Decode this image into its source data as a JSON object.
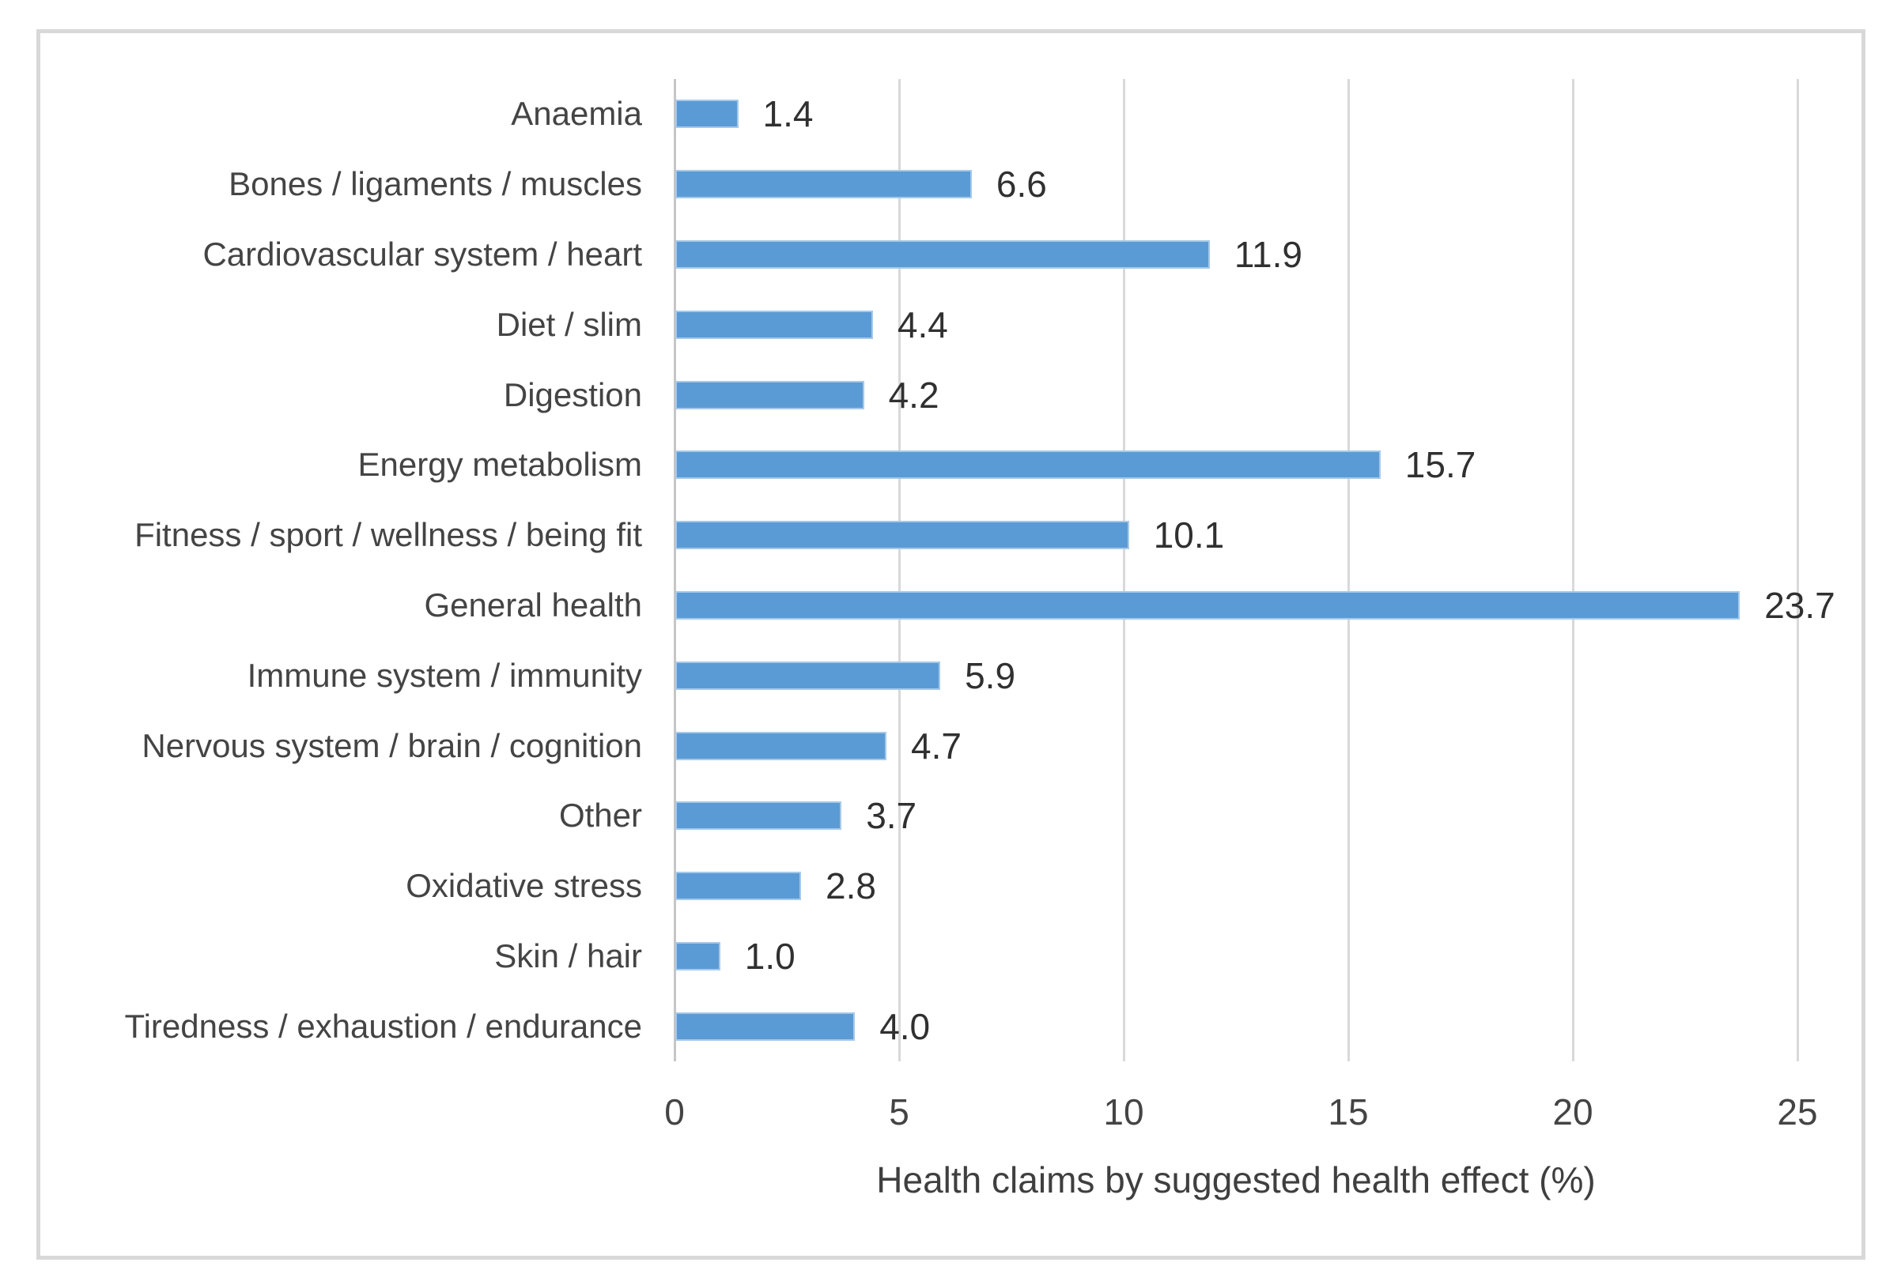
{
  "chart_data": {
    "type": "bar",
    "orientation": "horizontal",
    "title": "",
    "xlabel": "Health claims by suggested health effect (%)",
    "ylabel": "",
    "categories": [
      "Anaemia",
      "Bones / ligaments / muscles",
      "Cardiovascular system / heart",
      "Diet / slim",
      "Digestion",
      "Energy metabolism",
      "Fitness / sport / wellness / being fit",
      "General health",
      "Immune system / immunity",
      "Nervous system / brain / cognition",
      "Other",
      "Oxidative stress",
      "Skin / hair",
      "Tiredness / exhaustion / endurance"
    ],
    "values": [
      1.4,
      6.6,
      11.9,
      4.4,
      4.2,
      15.7,
      10.1,
      23.7,
      5.9,
      4.7,
      3.7,
      2.8,
      1.0,
      4.0
    ],
    "value_labels": [
      "1.4",
      "6.6",
      "11.9",
      "4.4",
      "4.2",
      "15.7",
      "10.1",
      "23.7",
      "5.9",
      "4.7",
      "3.7",
      "2.8",
      "1.0",
      "4.0"
    ],
    "x_ticks": [
      "0",
      "5",
      "10",
      "15",
      "20",
      "25"
    ],
    "xlim": [
      0,
      25
    ],
    "grid": true,
    "legend_position": "none",
    "bar_color": "#5b9bd5",
    "bar_edge_color": "#a6c9e9",
    "gridline_color": "#d9d9d9",
    "axis_line_color": "#c6c6c6",
    "text_color": "#444444",
    "frame_border_color": "#d8d8d8"
  }
}
